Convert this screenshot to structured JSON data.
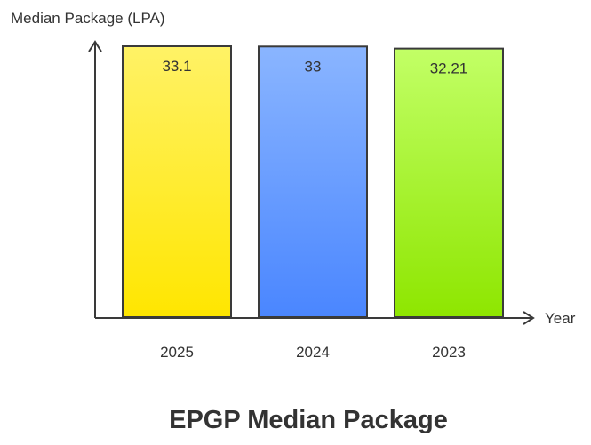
{
  "chart_data": {
    "type": "bar",
    "title": "EPGP Median Package",
    "xlabel": "Year",
    "ylabel": "Median Package (LPA)",
    "categories": [
      "2025",
      "2024",
      "2023"
    ],
    "values": [
      33.1,
      33,
      32.21
    ],
    "data_labels": [
      "33.1",
      "33",
      "32.21"
    ],
    "grid": false,
    "legend": "none",
    "bar_colors": [
      {
        "top": "#fff266",
        "bottom": "#ffe600"
      },
      {
        "top": "#8ab5ff",
        "bottom": "#4a86ff"
      },
      {
        "top": "#c2ff66",
        "bottom": "#8ee600"
      }
    ],
    "bar_stroke": "#3a3a3a",
    "axis_color": "#3a3a3a"
  }
}
